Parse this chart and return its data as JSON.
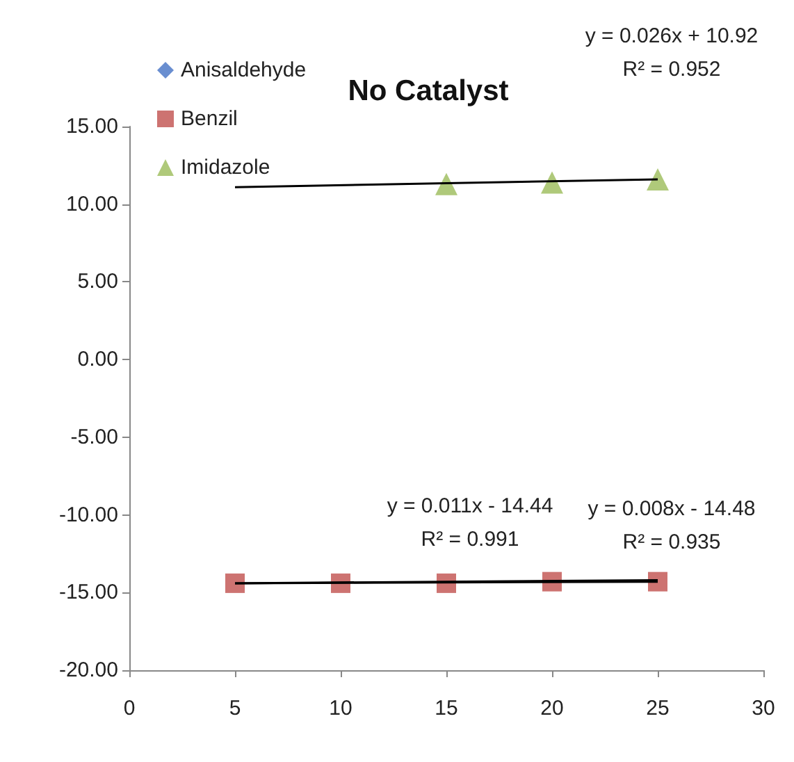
{
  "chart_data": {
    "type": "scatter",
    "title": "No Catalyst",
    "xlim": [
      0,
      30
    ],
    "xticks": [
      0,
      5,
      10,
      15,
      20,
      25,
      30
    ],
    "ylim": [
      -20,
      15
    ],
    "yticks": [
      {
        "value": -20,
        "label": "-20.00"
      },
      {
        "value": -15,
        "label": "-15.00"
      },
      {
        "value": -10,
        "label": "-10.00"
      },
      {
        "value": -5,
        "label": "-5.00"
      },
      {
        "value": 0,
        "label": "0.00"
      },
      {
        "value": 5,
        "label": "5.00"
      },
      {
        "value": 10,
        "label": "10.00"
      },
      {
        "value": 15,
        "label": "15.00"
      }
    ],
    "grid": false,
    "legend": "top left",
    "series": [
      {
        "name": "Anisaldehyde",
        "color": "#4472c4",
        "marker": "diamond"
      },
      {
        "name": "Benzil",
        "color": "#c0504d",
        "marker": "square",
        "x": [
          5,
          10,
          15,
          20,
          25
        ],
        "values": [
          -14.4,
          -14.4,
          -14.4,
          -14.3,
          -14.3
        ]
      },
      {
        "name": "Imidazole",
        "color": "#9bbb59",
        "marker": "triangle",
        "x": [
          15,
          20,
          25
        ],
        "values": [
          11.3,
          11.4,
          11.6
        ]
      },
      {
        "type": "line",
        "color": "#000000",
        "marker": "none",
        "x": [
          5,
          25
        ],
        "values": [
          -14.4,
          -14.2
        ]
      },
      {
        "type": "line",
        "color": "#000000",
        "marker": "none",
        "x": [
          5,
          25
        ],
        "values": [
          -14.4,
          -14.3
        ]
      },
      {
        "type": "line",
        "color": "#000000",
        "marker": "none",
        "x": [
          5,
          25
        ],
        "values": [
          11.1,
          11.6
        ]
      }
    ],
    "annotations": [
      "y = 0.026x + 10.92\nR² = 0.952",
      "y = 0.011x - 14.44\nR² = 0.991",
      "y = 0.008x - 14.48\nR² = 0.935"
    ]
  }
}
